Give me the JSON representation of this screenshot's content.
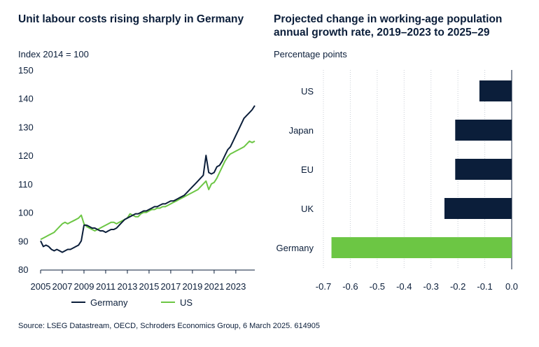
{
  "source": "Source: LSEG Datastream, OECD, Schroders Economics Group, 6 March 2025. 614905",
  "colors": {
    "navy": "#0b1e3a",
    "green": "#6cc644",
    "grid": "#c9ced6"
  },
  "chart_data": [
    {
      "type": "line",
      "title": "Unit labour costs rising sharply in Germany",
      "ylabel": "Index 2014 = 100",
      "ylim": [
        80,
        150
      ],
      "yticks": [
        80,
        90,
        100,
        110,
        120,
        130,
        140,
        150
      ],
      "xlim": [
        2005,
        2024.75
      ],
      "xticks": [
        2005,
        2007,
        2009,
        2011,
        2013,
        2015,
        2017,
        2019,
        2021,
        2023
      ],
      "legend_position": "bottom",
      "series": [
        {
          "name": "Germany",
          "color": "#0b1e3a",
          "x": [
            2005,
            2005.25,
            2005.5,
            2005.75,
            2006,
            2006.25,
            2006.5,
            2006.75,
            2007,
            2007.25,
            2007.5,
            2007.75,
            2008,
            2008.25,
            2008.5,
            2008.75,
            2009,
            2009.25,
            2009.5,
            2009.75,
            2010,
            2010.25,
            2010.5,
            2010.75,
            2011,
            2011.25,
            2011.5,
            2011.75,
            2012,
            2012.25,
            2012.5,
            2012.75,
            2013,
            2013.25,
            2013.5,
            2013.75,
            2014,
            2014.25,
            2014.5,
            2014.75,
            2015,
            2015.25,
            2015.5,
            2015.75,
            2016,
            2016.25,
            2016.5,
            2016.75,
            2017,
            2017.25,
            2017.5,
            2017.75,
            2018,
            2018.25,
            2018.5,
            2018.75,
            2019,
            2019.25,
            2019.5,
            2019.75,
            2020,
            2020.25,
            2020.5,
            2020.75,
            2021,
            2021.25,
            2021.5,
            2021.75,
            2022,
            2022.25,
            2022.5,
            2022.75,
            2023,
            2023.25,
            2023.5,
            2023.75,
            2024,
            2024.25,
            2024.5,
            2024.75
          ],
          "values": [
            90,
            88,
            88.5,
            88,
            87,
            86.5,
            87,
            86.5,
            86,
            86.5,
            87,
            87,
            87.5,
            88,
            88.5,
            90,
            95.5,
            95.5,
            95,
            94.5,
            94.5,
            94,
            93.5,
            93.5,
            93,
            93.5,
            94,
            94,
            94.5,
            95.5,
            96.5,
            97.5,
            98,
            98.5,
            99,
            99.5,
            99.5,
            100,
            100.5,
            100.5,
            101,
            101.5,
            102,
            102,
            102.5,
            103,
            103,
            103.5,
            104,
            104,
            104.5,
            105,
            105.5,
            106,
            107,
            108,
            109,
            110,
            111,
            112,
            113,
            120,
            114,
            113.5,
            114,
            116,
            116.5,
            118,
            120,
            122,
            123,
            125,
            127,
            129,
            131,
            133,
            134,
            135,
            136,
            137.5
          ]
        },
        {
          "name": "US",
          "color": "#6cc644",
          "x": [
            2005,
            2005.25,
            2005.5,
            2005.75,
            2006,
            2006.25,
            2006.5,
            2006.75,
            2007,
            2007.25,
            2007.5,
            2007.75,
            2008,
            2008.25,
            2008.5,
            2008.75,
            2009,
            2009.25,
            2009.5,
            2009.75,
            2010,
            2010.25,
            2010.5,
            2010.75,
            2011,
            2011.25,
            2011.5,
            2011.75,
            2012,
            2012.25,
            2012.5,
            2012.75,
            2013,
            2013.25,
            2013.5,
            2013.75,
            2014,
            2014.25,
            2014.5,
            2014.75,
            2015,
            2015.25,
            2015.5,
            2015.75,
            2016,
            2016.25,
            2016.5,
            2016.75,
            2017,
            2017.25,
            2017.5,
            2017.75,
            2018,
            2018.25,
            2018.5,
            2018.75,
            2019,
            2019.25,
            2019.5,
            2019.75,
            2020,
            2020.25,
            2020.5,
            2020.75,
            2021,
            2021.25,
            2021.5,
            2021.75,
            2022,
            2022.25,
            2022.5,
            2022.75,
            2023,
            2023.25,
            2023.5,
            2023.75,
            2024,
            2024.25,
            2024.5,
            2024.75
          ],
          "values": [
            90.5,
            91,
            91.5,
            92,
            92.5,
            93,
            94,
            95,
            96,
            96.5,
            96,
            96.5,
            97,
            97.5,
            98,
            99,
            96,
            95,
            94.5,
            94,
            93.5,
            94,
            94.5,
            95,
            95.5,
            96,
            96.5,
            96.5,
            96,
            96.5,
            97,
            97.5,
            98,
            99.5,
            99,
            98.5,
            98.5,
            99.5,
            100,
            100,
            100.5,
            101,
            101,
            101.5,
            101.5,
            102,
            102,
            102.5,
            103,
            103.5,
            104,
            104.5,
            105,
            105.5,
            106,
            106.5,
            107,
            107.5,
            108,
            109,
            110,
            111,
            108,
            110,
            110.5,
            112,
            114,
            116,
            118,
            119.5,
            120.5,
            121,
            121.5,
            122,
            122.5,
            123,
            124,
            125,
            124.5,
            125
          ]
        }
      ]
    },
    {
      "type": "bar",
      "orientation": "horizontal",
      "title": "Projected change in working-age population annual growth rate, 2019–2023 to 2025–29",
      "xlabel": "Percentage points",
      "xlim": [
        -0.7,
        0.0
      ],
      "xticks": [
        -0.7,
        -0.6,
        -0.5,
        -0.4,
        -0.3,
        -0.2,
        -0.1,
        0.0
      ],
      "xtick_labels": [
        "-0.7",
        "-0.6",
        "-0.5",
        "-0.4",
        "-0.3",
        "-0.2",
        "-0.1",
        "0.0"
      ],
      "categories": [
        "US",
        "Japan",
        "EU",
        "UK",
        "Germany"
      ],
      "values": [
        -0.12,
        -0.21,
        -0.21,
        -0.25,
        -0.67
      ],
      "bar_colors": [
        "#0b1e3a",
        "#0b1e3a",
        "#0b1e3a",
        "#0b1e3a",
        "#6cc644"
      ]
    }
  ]
}
